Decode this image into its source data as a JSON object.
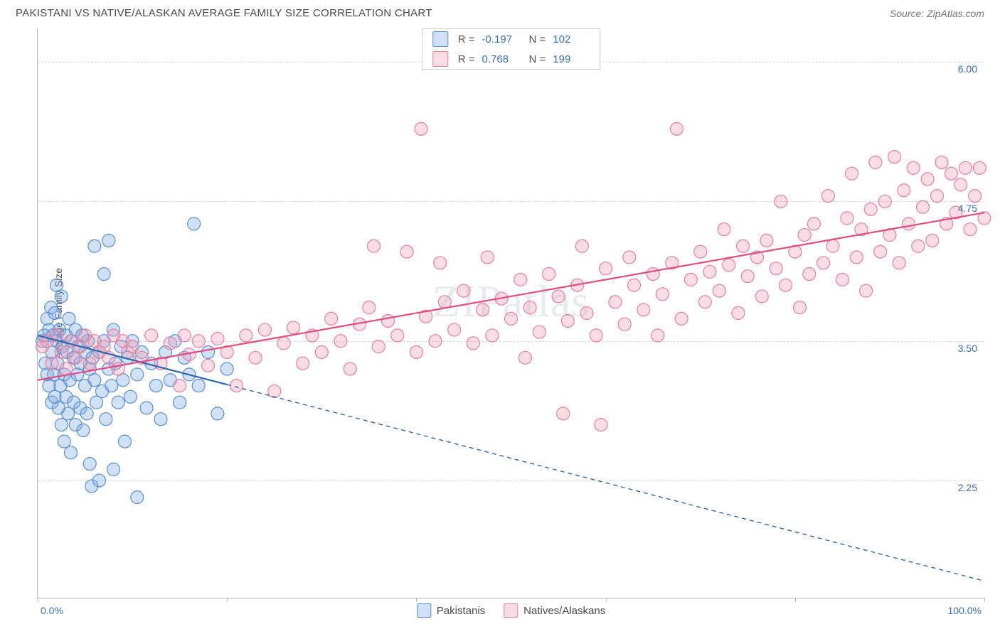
{
  "header": {
    "title": "PAKISTANI VS NATIVE/ALASKAN AVERAGE FAMILY SIZE CORRELATION CHART",
    "source": "Source: ZipAtlas.com"
  },
  "chart": {
    "type": "scatter",
    "ylabel": "Average Family Size",
    "xlim": [
      0,
      100
    ],
    "ylim": [
      1.2,
      6.3
    ],
    "yticks": [
      2.25,
      3.5,
      4.75,
      6.0
    ],
    "ytick_labels": [
      "2.25",
      "3.50",
      "4.75",
      "6.00"
    ],
    "xticks": [
      0,
      20,
      40,
      60,
      80,
      100
    ],
    "x_left_label": "0.0%",
    "x_right_label": "100.0%",
    "background_color": "#ffffff",
    "grid_color": "#d8d8d8",
    "axis_color": "#bbbbbb",
    "marker_radius": 9,
    "marker_stroke_width": 1.2,
    "trend_line_width": 2.2,
    "watermark_text": "ZIPatlas",
    "series": [
      {
        "name": "Pakistanis",
        "fill": "rgba(120,165,225,0.35)",
        "stroke": "#5a8fd6",
        "trend_stroke": "#2c66b0",
        "R": "-0.197",
        "N": "102",
        "trend": {
          "x1": 0,
          "y1": 3.55,
          "x2": 100,
          "y2": 1.35,
          "solid_until_x": 20
        },
        "points": [
          [
            0.5,
            3.5
          ],
          [
            0.7,
            3.55
          ],
          [
            0.8,
            3.3
          ],
          [
            1.0,
            3.7
          ],
          [
            1.0,
            3.2
          ],
          [
            1.2,
            3.6
          ],
          [
            1.2,
            3.1
          ],
          [
            1.4,
            3.8
          ],
          [
            1.5,
            3.4
          ],
          [
            1.5,
            2.95
          ],
          [
            1.6,
            3.55
          ],
          [
            1.7,
            3.2
          ],
          [
            1.8,
            3.75
          ],
          [
            1.8,
            3.0
          ],
          [
            2.0,
            3.5
          ],
          [
            2.0,
            4.0
          ],
          [
            2.1,
            3.3
          ],
          [
            2.2,
            2.9
          ],
          [
            2.3,
            3.6
          ],
          [
            2.4,
            3.1
          ],
          [
            2.5,
            3.9
          ],
          [
            2.5,
            2.75
          ],
          [
            2.6,
            3.45
          ],
          [
            2.8,
            3.2
          ],
          [
            2.8,
            2.6
          ],
          [
            3.0,
            3.55
          ],
          [
            3.0,
            3.0
          ],
          [
            3.1,
            3.4
          ],
          [
            3.2,
            2.85
          ],
          [
            3.3,
            3.7
          ],
          [
            3.4,
            3.15
          ],
          [
            3.5,
            2.5
          ],
          [
            3.6,
            3.5
          ],
          [
            3.8,
            2.95
          ],
          [
            3.8,
            3.35
          ],
          [
            4.0,
            3.6
          ],
          [
            4.0,
            2.75
          ],
          [
            4.2,
            3.2
          ],
          [
            4.3,
            3.45
          ],
          [
            4.5,
            2.9
          ],
          [
            4.5,
            3.3
          ],
          [
            4.7,
            3.55
          ],
          [
            4.8,
            2.7
          ],
          [
            5.0,
            3.4
          ],
          [
            5.0,
            3.1
          ],
          [
            5.2,
            2.85
          ],
          [
            5.3,
            3.5
          ],
          [
            5.5,
            3.25
          ],
          [
            5.5,
            2.4
          ],
          [
            5.7,
            2.2
          ],
          [
            5.8,
            3.35
          ],
          [
            6.0,
            3.15
          ],
          [
            6.0,
            4.35
          ],
          [
            6.2,
            2.95
          ],
          [
            6.5,
            3.4
          ],
          [
            6.5,
            2.25
          ],
          [
            6.8,
            3.05
          ],
          [
            7.0,
            3.5
          ],
          [
            7.0,
            4.1
          ],
          [
            7.2,
            2.8
          ],
          [
            7.5,
            3.25
          ],
          [
            7.5,
            4.4
          ],
          [
            7.8,
            3.1
          ],
          [
            8.0,
            3.6
          ],
          [
            8.0,
            2.35
          ],
          [
            8.2,
            3.3
          ],
          [
            8.5,
            2.95
          ],
          [
            8.8,
            3.45
          ],
          [
            9.0,
            3.15
          ],
          [
            9.2,
            2.6
          ],
          [
            9.5,
            3.35
          ],
          [
            9.8,
            3.0
          ],
          [
            10.0,
            3.5
          ],
          [
            10.5,
            3.2
          ],
          [
            10.5,
            2.1
          ],
          [
            11.0,
            3.4
          ],
          [
            11.5,
            2.9
          ],
          [
            12.0,
            3.3
          ],
          [
            12.5,
            3.1
          ],
          [
            13.0,
            2.8
          ],
          [
            13.5,
            3.4
          ],
          [
            14.0,
            3.15
          ],
          [
            14.5,
            3.5
          ],
          [
            15.0,
            2.95
          ],
          [
            15.5,
            3.35
          ],
          [
            16.0,
            3.2
          ],
          [
            16.5,
            4.55
          ],
          [
            17.0,
            3.1
          ],
          [
            18.0,
            3.4
          ],
          [
            19.0,
            2.85
          ],
          [
            20.0,
            3.25
          ]
        ]
      },
      {
        "name": "Natives/Alaskans",
        "fill": "rgba(240,155,180,0.35)",
        "stroke": "#e87fa0",
        "trend_stroke": "#e04d82",
        "R": "0.768",
        "N": "199",
        "trend": {
          "x1": 0,
          "y1": 3.15,
          "x2": 100,
          "y2": 4.65,
          "solid_until_x": 100
        },
        "points": [
          [
            0.5,
            3.45
          ],
          [
            1.0,
            3.5
          ],
          [
            1.5,
            3.3
          ],
          [
            2.0,
            3.55
          ],
          [
            2.5,
            3.4
          ],
          [
            3.0,
            3.25
          ],
          [
            3.5,
            3.5
          ],
          [
            4.0,
            3.35
          ],
          [
            4.5,
            3.45
          ],
          [
            5.0,
            3.55
          ],
          [
            5.5,
            3.3
          ],
          [
            6.0,
            3.5
          ],
          [
            6.5,
            3.4
          ],
          [
            7.0,
            3.45
          ],
          [
            7.5,
            3.35
          ],
          [
            8.0,
            3.55
          ],
          [
            8.5,
            3.25
          ],
          [
            9.0,
            3.5
          ],
          [
            9.5,
            3.4
          ],
          [
            10.0,
            3.45
          ],
          [
            11.0,
            3.35
          ],
          [
            12.0,
            3.55
          ],
          [
            13.0,
            3.3
          ],
          [
            14.0,
            3.48
          ],
          [
            15.0,
            3.1
          ],
          [
            15.5,
            3.55
          ],
          [
            16.0,
            3.38
          ],
          [
            17.0,
            3.5
          ],
          [
            18.0,
            3.28
          ],
          [
            19.0,
            3.52
          ],
          [
            20.0,
            3.4
          ],
          [
            21.0,
            3.1
          ],
          [
            22.0,
            3.55
          ],
          [
            23.0,
            3.35
          ],
          [
            24.0,
            3.6
          ],
          [
            25.0,
            3.05
          ],
          [
            26.0,
            3.48
          ],
          [
            27.0,
            3.62
          ],
          [
            28.0,
            3.3
          ],
          [
            29.0,
            3.55
          ],
          [
            30.0,
            3.4
          ],
          [
            31.0,
            3.7
          ],
          [
            32.0,
            3.5
          ],
          [
            33.0,
            3.25
          ],
          [
            34.0,
            3.65
          ],
          [
            35.0,
            3.8
          ],
          [
            35.5,
            4.35
          ],
          [
            36.0,
            3.45
          ],
          [
            37.0,
            3.68
          ],
          [
            38.0,
            3.55
          ],
          [
            39.0,
            4.3
          ],
          [
            40.0,
            3.4
          ],
          [
            40.5,
            5.4
          ],
          [
            41.0,
            3.72
          ],
          [
            42.0,
            3.5
          ],
          [
            42.5,
            4.2
          ],
          [
            43.0,
            3.85
          ],
          [
            44.0,
            3.6
          ],
          [
            45.0,
            3.95
          ],
          [
            46.0,
            3.48
          ],
          [
            47.0,
            3.78
          ],
          [
            47.5,
            4.25
          ],
          [
            48.0,
            3.55
          ],
          [
            49.0,
            3.88
          ],
          [
            50.0,
            3.7
          ],
          [
            51.0,
            4.05
          ],
          [
            51.5,
            3.35
          ],
          [
            52.0,
            3.8
          ],
          [
            53.0,
            3.58
          ],
          [
            54.0,
            4.1
          ],
          [
            55.0,
            3.9
          ],
          [
            55.5,
            2.85
          ],
          [
            56.0,
            3.68
          ],
          [
            57.0,
            4.0
          ],
          [
            57.5,
            4.35
          ],
          [
            58.0,
            3.75
          ],
          [
            59.0,
            3.55
          ],
          [
            59.5,
            2.75
          ],
          [
            60.0,
            4.15
          ],
          [
            61.0,
            3.85
          ],
          [
            62.0,
            3.65
          ],
          [
            62.5,
            4.25
          ],
          [
            63.0,
            4.0
          ],
          [
            64.0,
            3.78
          ],
          [
            65.0,
            4.1
          ],
          [
            65.5,
            3.55
          ],
          [
            66.0,
            3.92
          ],
          [
            67.0,
            4.2
          ],
          [
            67.5,
            5.4
          ],
          [
            68.0,
            3.7
          ],
          [
            69.0,
            4.05
          ],
          [
            70.0,
            4.3
          ],
          [
            70.5,
            3.85
          ],
          [
            71.0,
            4.12
          ],
          [
            72.0,
            3.95
          ],
          [
            72.5,
            4.5
          ],
          [
            73.0,
            4.18
          ],
          [
            74.0,
            3.75
          ],
          [
            74.5,
            4.35
          ],
          [
            75.0,
            4.08
          ],
          [
            76.0,
            4.25
          ],
          [
            76.5,
            3.9
          ],
          [
            77.0,
            4.4
          ],
          [
            78.0,
            4.15
          ],
          [
            78.5,
            4.75
          ],
          [
            79.0,
            4.0
          ],
          [
            80.0,
            4.3
          ],
          [
            80.5,
            3.8
          ],
          [
            81.0,
            4.45
          ],
          [
            81.5,
            4.1
          ],
          [
            82.0,
            4.55
          ],
          [
            83.0,
            4.2
          ],
          [
            83.5,
            4.8
          ],
          [
            84.0,
            4.35
          ],
          [
            85.0,
            4.05
          ],
          [
            85.5,
            4.6
          ],
          [
            86.0,
            5.0
          ],
          [
            86.5,
            4.25
          ],
          [
            87.0,
            4.5
          ],
          [
            87.5,
            3.95
          ],
          [
            88.0,
            4.68
          ],
          [
            88.5,
            5.1
          ],
          [
            89.0,
            4.3
          ],
          [
            89.5,
            4.75
          ],
          [
            90.0,
            4.45
          ],
          [
            90.5,
            5.15
          ],
          [
            91.0,
            4.2
          ],
          [
            91.5,
            4.85
          ],
          [
            92.0,
            4.55
          ],
          [
            92.5,
            5.05
          ],
          [
            93.0,
            4.35
          ],
          [
            93.5,
            4.7
          ],
          [
            94.0,
            4.95
          ],
          [
            94.5,
            4.4
          ],
          [
            95.0,
            4.8
          ],
          [
            95.5,
            5.1
          ],
          [
            96.0,
            4.55
          ],
          [
            96.5,
            5.0
          ],
          [
            97.0,
            4.65
          ],
          [
            97.5,
            4.9
          ],
          [
            98.0,
            5.05
          ],
          [
            98.5,
            4.5
          ],
          [
            99.0,
            4.8
          ],
          [
            99.5,
            5.05
          ],
          [
            100.0,
            4.6
          ]
        ]
      }
    ],
    "stats_labels": {
      "R": "R =",
      "N": "N ="
    },
    "bottom_legend_labels": [
      "Pakistanis",
      "Natives/Alaskans"
    ]
  }
}
